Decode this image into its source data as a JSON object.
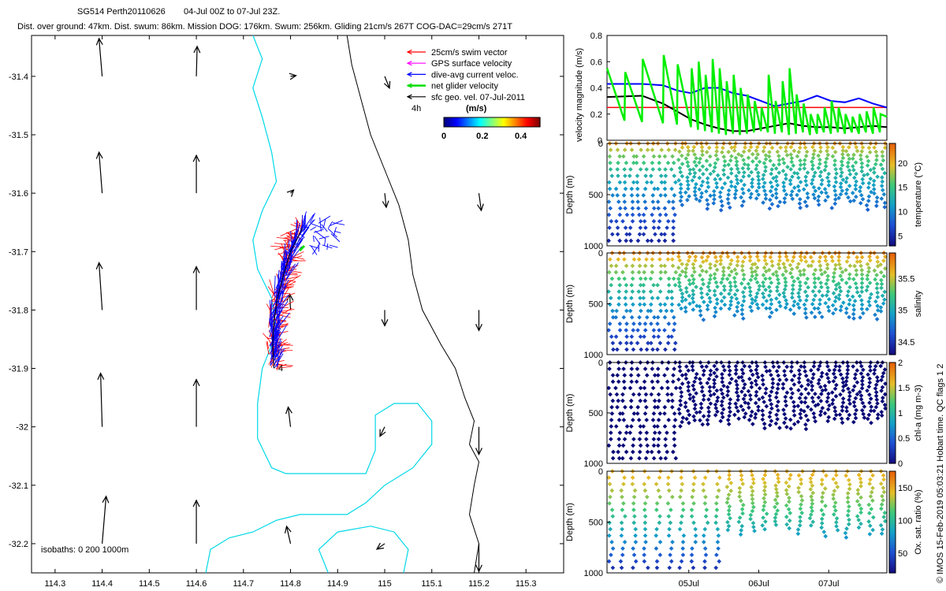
{
  "header": {
    "title_left": "SG514 Perth20110626",
    "title_right": "04-Jul 00Z to 07-Jul 23Z.",
    "stats": "Dist. over ground: 47km. Dist. swum: 86km. Mission DOG: 176km. Swum: 256km. Gliding 21cm/s 267T COG-DAC=29cm/s 271T"
  },
  "side_note": "© IMOS 15-Feb-2019 05:03:21 Hobart time. QC flags 1  2",
  "colors": {
    "swim": "#ff0000",
    "gps": "#ff00ff",
    "dac": "#0000ff",
    "net": "#00dd00",
    "geo": "#000000",
    "coast": "#00d8e8"
  },
  "chart_data": [
    {
      "type": "scatter",
      "name": "map",
      "xlabel": "",
      "ylabel": "",
      "xlim": [
        114.25,
        115.38
      ],
      "ylim": [
        -32.25,
        -31.33
      ],
      "xticks": [
        114.3,
        114.4,
        114.5,
        114.6,
        114.7,
        114.8,
        114.9,
        115,
        115.1,
        115.2,
        115.3
      ],
      "xtick_labels": [
        "114.3",
        "114.4",
        "114.5",
        "114.6",
        "114.7",
        "114.8",
        "114.9",
        "115",
        "115.1",
        "115.2",
        "115.3"
      ],
      "yticks": [
        -31.4,
        -31.5,
        -31.6,
        -31.7,
        -31.8,
        -31.9,
        -32,
        -32.1,
        -32.2
      ],
      "ytick_labels": [
        "-31.4",
        "-31.5",
        "-31.6",
        "-31.7",
        "-31.8",
        "-31.9",
        "-32",
        "-32.1",
        "-32.2"
      ],
      "legend": {
        "location": "top-right",
        "entries": [
          {
            "label": "25cm/s swim vector",
            "color": "#ff0000"
          },
          {
            "label": "GPS surface velocity",
            "color": "#ff00ff"
          },
          {
            "label": "dive-avg current veloc.",
            "color": "#0000ff"
          },
          {
            "label": "net glider velocity",
            "color": "#00dd00"
          },
          {
            "label": "sfc geo. vel. 07-Jul-2011",
            "color": "#000000"
          }
        ],
        "extra": "4h"
      },
      "colorbar": {
        "title": "(m/s)",
        "ticks": [
          0,
          0.2,
          0.4
        ],
        "tick_labels": [
          "0",
          "0.2",
          "0.4"
        ],
        "range": [
          0,
          0.5
        ]
      },
      "isobaths_label": "isobaths: 0   200  1000m",
      "annotation": "4",
      "geo_vectors": [
        {
          "lon": 114.4,
          "lat": -31.4,
          "u": -0.04,
          "v": 0.48
        },
        {
          "lon": 114.6,
          "lat": -31.4,
          "u": 0.01,
          "v": 0.38
        },
        {
          "lon": 114.8,
          "lat": -31.4,
          "u": 0.07,
          "v": 0.01
        },
        {
          "lon": 115.0,
          "lat": -31.4,
          "u": 0.06,
          "v": -0.15
        },
        {
          "lon": 114.4,
          "lat": -31.6,
          "u": -0.04,
          "v": 0.52
        },
        {
          "lon": 114.6,
          "lat": -31.6,
          "u": 0.0,
          "v": 0.48
        },
        {
          "lon": 114.8,
          "lat": -31.6,
          "u": 0.04,
          "v": 0.04
        },
        {
          "lon": 115.0,
          "lat": -31.6,
          "u": 0.02,
          "v": -0.18
        },
        {
          "lon": 115.2,
          "lat": -31.6,
          "u": 0.03,
          "v": -0.22
        },
        {
          "lon": 114.4,
          "lat": -31.8,
          "u": -0.04,
          "v": 0.6
        },
        {
          "lon": 114.6,
          "lat": -31.8,
          "u": 0.0,
          "v": 0.55
        },
        {
          "lon": 114.8,
          "lat": -31.8,
          "u": -0.01,
          "v": 0.2
        },
        {
          "lon": 115.0,
          "lat": -31.8,
          "u": 0.0,
          "v": -0.2
        },
        {
          "lon": 115.2,
          "lat": -31.8,
          "u": 0.0,
          "v": -0.26
        },
        {
          "lon": 114.4,
          "lat": -32.0,
          "u": -0.02,
          "v": 0.68
        },
        {
          "lon": 114.6,
          "lat": -32.0,
          "u": 0.0,
          "v": 0.6
        },
        {
          "lon": 114.8,
          "lat": -32.0,
          "u": -0.03,
          "v": 0.25
        },
        {
          "lon": 115.0,
          "lat": -32.0,
          "u": -0.06,
          "v": -0.12
        },
        {
          "lon": 115.2,
          "lat": -32.0,
          "u": 0.0,
          "v": -0.35
        },
        {
          "lon": 114.4,
          "lat": -32.2,
          "u": 0.05,
          "v": 0.6
        },
        {
          "lon": 114.6,
          "lat": -32.2,
          "u": 0.0,
          "v": 0.55
        },
        {
          "lon": 114.8,
          "lat": -32.2,
          "u": -0.05,
          "v": 0.22
        },
        {
          "lon": 115.0,
          "lat": -32.2,
          "u": -0.1,
          "v": -0.07
        },
        {
          "lon": 115.2,
          "lat": -32.2,
          "u": 0.0,
          "v": -0.35
        }
      ],
      "glider_track": [
        {
          "lon": 114.825,
          "lat": -31.66
        },
        {
          "lon": 114.8,
          "lat": -31.7
        },
        {
          "lon": 114.785,
          "lat": -31.74
        },
        {
          "lon": 114.772,
          "lat": -31.78
        },
        {
          "lon": 114.765,
          "lat": -31.82
        },
        {
          "lon": 114.762,
          "lat": -31.86
        },
        {
          "lon": 114.765,
          "lat": -31.9
        }
      ],
      "coast_200m": [
        [
          114.72,
          -31.33
        ],
        [
          114.74,
          -31.37
        ],
        [
          114.72,
          -31.42
        ],
        [
          114.74,
          -31.47
        ],
        [
          114.76,
          -31.53
        ],
        [
          114.77,
          -31.58
        ],
        [
          114.74,
          -31.63
        ],
        [
          114.72,
          -31.68
        ],
        [
          114.73,
          -31.73
        ],
        [
          114.76,
          -31.78
        ],
        [
          114.77,
          -31.84
        ],
        [
          114.74,
          -31.9
        ],
        [
          114.73,
          -31.96
        ],
        [
          114.73,
          -32.02
        ],
        [
          114.76,
          -32.07
        ],
        [
          114.79,
          -32.08
        ],
        [
          114.88,
          -32.08
        ],
        [
          114.96,
          -32.08
        ],
        [
          114.98,
          -32.04
        ],
        [
          114.98,
          -31.98
        ],
        [
          115.02,
          -31.96
        ],
        [
          115.07,
          -31.96
        ],
        [
          115.1,
          -31.99
        ],
        [
          115.1,
          -32.03
        ],
        [
          115.06,
          -32.07
        ],
        [
          115.0,
          -32.1
        ],
        [
          114.96,
          -32.13
        ],
        [
          114.92,
          -32.15
        ],
        [
          114.87,
          -32.15
        ],
        [
          114.82,
          -32.15
        ],
        [
          114.77,
          -32.16
        ],
        [
          114.72,
          -32.18
        ],
        [
          114.67,
          -32.19
        ],
        [
          114.63,
          -32.21
        ],
        [
          114.62,
          -32.25
        ]
      ],
      "coast_0m": [
        [
          114.92,
          -31.33
        ],
        [
          114.93,
          -31.38
        ],
        [
          114.95,
          -31.44
        ],
        [
          114.97,
          -31.5
        ],
        [
          115.0,
          -31.56
        ],
        [
          115.03,
          -31.62
        ],
        [
          115.05,
          -31.68
        ],
        [
          115.06,
          -31.74
        ],
        [
          115.08,
          -31.8
        ],
        [
          115.12,
          -31.86
        ],
        [
          115.15,
          -31.9
        ],
        [
          115.17,
          -31.95
        ],
        [
          115.19,
          -31.99
        ],
        [
          115.18,
          -32.03
        ],
        [
          115.2,
          -32.06
        ],
        [
          115.19,
          -32.1
        ],
        [
          115.18,
          -32.15
        ],
        [
          115.2,
          -32.2
        ],
        [
          115.19,
          -32.25
        ]
      ],
      "coast_island": [
        [
          114.88,
          -32.25
        ],
        [
          114.86,
          -32.21
        ],
        [
          114.9,
          -32.18
        ],
        [
          114.97,
          -32.17
        ],
        [
          115.02,
          -32.18
        ],
        [
          115.05,
          -32.21
        ],
        [
          115.04,
          -32.25
        ]
      ]
    },
    {
      "type": "line",
      "name": "velocity",
      "ylabel": "velocity magnitude (m/s)",
      "ylim": [
        0,
        0.8
      ],
      "yticks": [
        0,
        0.2,
        0.4,
        0.6,
        0.8
      ],
      "ytick_labels": [
        "0",
        "0.2",
        "0.4",
        "0.6",
        "0.8"
      ],
      "series": [
        {
          "name": "red",
          "color": "#ff0000",
          "t": [
            0,
            4
          ],
          "values": [
            0.25,
            0.25
          ]
        },
        {
          "name": "blue",
          "color": "#0000ff",
          "t": [
            0,
            0.5,
            0.8,
            1.0,
            1.2,
            1.4,
            1.6,
            1.8,
            2.0,
            2.2,
            2.4,
            2.6,
            2.8,
            3.0,
            3.2,
            3.4,
            3.6,
            3.8,
            4.0
          ],
          "values": [
            0.43,
            0.43,
            0.42,
            0.38,
            0.36,
            0.4,
            0.4,
            0.36,
            0.34,
            0.3,
            0.26,
            0.28,
            0.3,
            0.34,
            0.3,
            0.29,
            0.32,
            0.28,
            0.25
          ]
        },
        {
          "name": "black",
          "color": "#000000",
          "t": [
            0,
            0.5,
            0.8,
            1.0,
            1.2,
            1.4,
            1.6,
            1.8,
            2.0,
            2.2,
            2.4,
            2.6,
            2.8,
            3.0,
            3.2,
            3.4,
            3.6,
            3.8,
            4.0
          ],
          "values": [
            0.33,
            0.34,
            0.28,
            0.22,
            0.16,
            0.12,
            0.09,
            0.07,
            0.07,
            0.09,
            0.11,
            0.13,
            0.11,
            0.1,
            0.1,
            0.09,
            0.1,
            0.11,
            0.1
          ]
        },
        {
          "name": "green",
          "color": "#00ee00",
          "t": [
            0,
            0.25,
            0.26,
            0.5,
            0.51,
            0.8,
            0.81,
            1.0,
            1.01,
            1.2,
            1.21,
            1.3,
            1.31,
            1.4,
            1.41,
            1.5,
            1.51,
            1.6,
            1.61,
            1.7,
            1.71,
            1.8,
            1.81,
            1.9,
            1.91,
            2.0,
            2.01,
            2.1,
            2.11,
            2.2,
            2.21,
            2.3,
            2.31,
            2.4,
            2.41,
            2.5,
            2.51,
            2.6,
            2.61,
            2.7,
            2.71,
            2.8,
            2.81,
            2.9,
            2.91,
            3.0,
            3.01,
            3.1,
            3.11,
            3.2,
            3.21,
            3.3,
            3.31,
            3.4,
            3.41,
            3.5,
            3.51,
            3.6,
            3.61,
            3.7,
            3.71,
            3.8,
            3.81,
            3.9,
            3.91,
            4.0
          ],
          "values": [
            0.55,
            0.15,
            0.52,
            0.14,
            0.62,
            0.13,
            0.65,
            0.12,
            0.58,
            0.1,
            0.55,
            0.08,
            0.6,
            0.07,
            0.5,
            0.06,
            0.62,
            0.05,
            0.55,
            0.04,
            0.45,
            0.05,
            0.5,
            0.04,
            0.4,
            0.05,
            0.35,
            0.06,
            0.3,
            0.07,
            0.25,
            0.06,
            0.5,
            0.05,
            0.3,
            0.06,
            0.45,
            0.04,
            0.55,
            0.05,
            0.35,
            0.06,
            0.28,
            0.04,
            0.2,
            0.05,
            0.2,
            0.06,
            0.25,
            0.05,
            0.3,
            0.06,
            0.25,
            0.05,
            0.2,
            0.06,
            0.18,
            0.05,
            0.2,
            0.06,
            0.22,
            0.05,
            0.25,
            0.06,
            0.2,
            0.18
          ]
        }
      ]
    },
    {
      "type": "scatter",
      "name": "temperature",
      "ylabel": "Depth (m)",
      "ylim": [
        0,
        1000
      ],
      "yticks": [
        0,
        500,
        1000
      ],
      "ytick_labels": [
        "0",
        "500",
        "1000"
      ],
      "colorbar": {
        "label": "temperature (°C)",
        "range": [
          3,
          24
        ],
        "ticks": [
          5,
          10,
          15,
          20
        ],
        "tick_labels": [
          "5",
          "10",
          "15",
          "20"
        ]
      }
    },
    {
      "type": "scatter",
      "name": "salinity",
      "ylabel": "Depth (m)",
      "ylim": [
        0,
        1000
      ],
      "yticks": [
        0,
        500,
        1000
      ],
      "ytick_labels": [
        "0",
        "500",
        "1000"
      ],
      "colorbar": {
        "label": "salinity",
        "range": [
          34.3,
          35.9
        ],
        "ticks": [
          34.5,
          35,
          35.5
        ],
        "tick_labels": [
          "34.5",
          "35",
          "35.5"
        ]
      }
    },
    {
      "type": "scatter",
      "name": "chla",
      "ylabel": "Depth (m)",
      "ylim": [
        0,
        1000
      ],
      "yticks": [
        0,
        500,
        1000
      ],
      "ytick_labels": [
        "0",
        "500",
        "1000"
      ],
      "colorbar": {
        "label": "chl-a (mg m-3)",
        "range": [
          0,
          2
        ],
        "ticks": [
          0,
          0.5,
          1,
          1.5,
          2
        ],
        "tick_labels": [
          "0",
          "0.5",
          "1",
          "1.5",
          "2"
        ]
      }
    },
    {
      "type": "scatter",
      "name": "oxygen",
      "ylabel": "Depth (m)",
      "ylim": [
        0,
        1000
      ],
      "yticks": [
        0,
        500,
        1000
      ],
      "ytick_labels": [
        "0",
        "500",
        "1000"
      ],
      "xtick_labels": [
        "05Jul",
        "06Jul",
        "07Jul"
      ],
      "xticks": [
        1,
        2,
        3
      ],
      "colorbar": {
        "label": "Ox. sat. ratio (%)",
        "range": [
          20,
          175
        ],
        "ticks": [
          50,
          100,
          150
        ],
        "tick_labels": [
          "50",
          "100",
          "150"
        ]
      }
    }
  ]
}
